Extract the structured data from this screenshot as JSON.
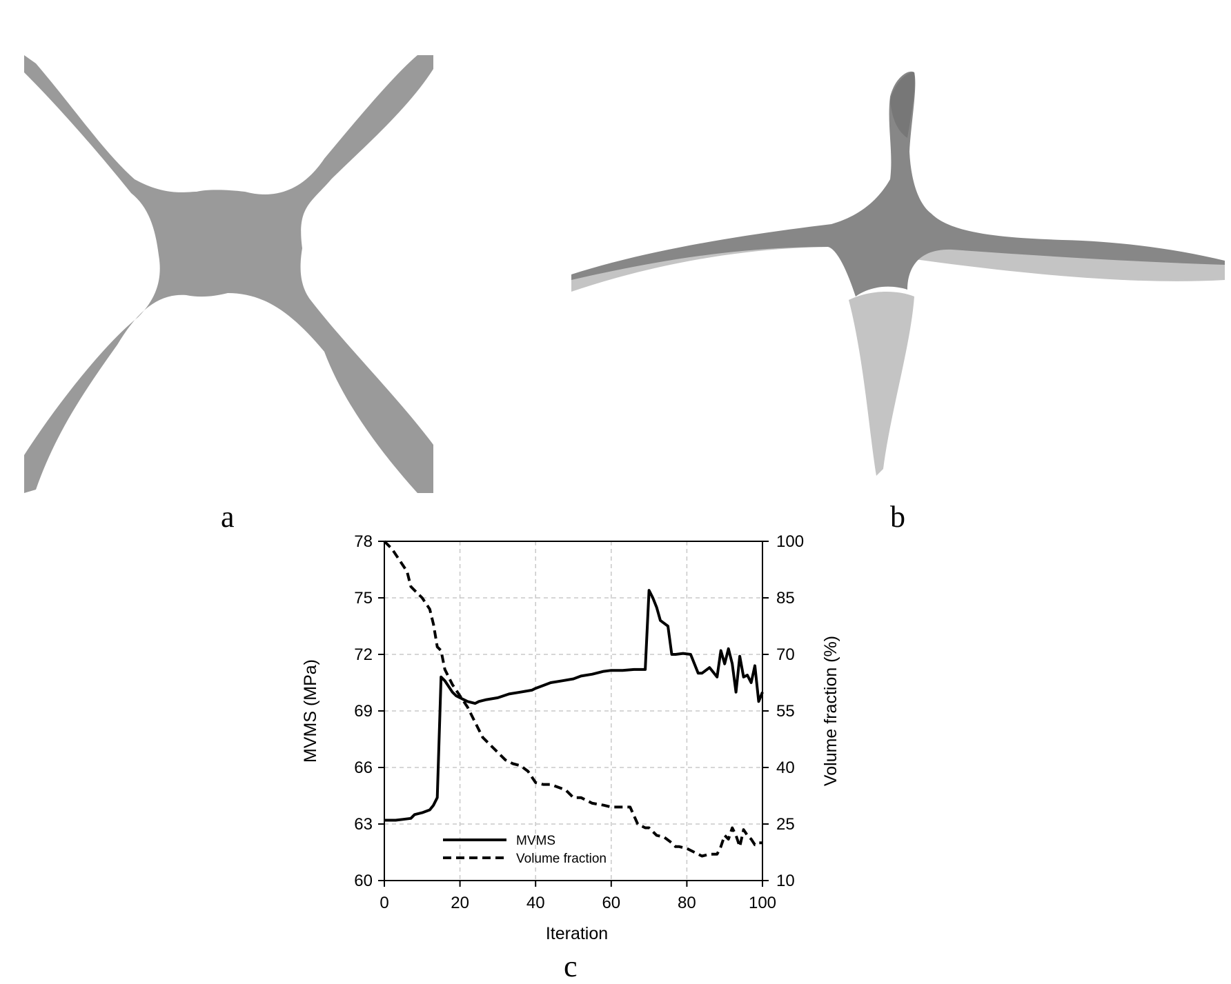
{
  "panels": {
    "a": "a",
    "b": "b",
    "c": "c"
  },
  "colors": {
    "shape": "#9a9a9a",
    "shape_dark": "#878787",
    "shape_light": "#c4c4c4",
    "line": "#000000",
    "grid": "#c8c8c8"
  },
  "chart_data": {
    "type": "line",
    "xlabel": "Iteration",
    "ylabel": "MVMS (MPa)",
    "y2label": "Volume fraction (%)",
    "xlim": [
      0,
      100
    ],
    "ylim": [
      60,
      78
    ],
    "y2lim": [
      10,
      100
    ],
    "xticks": [
      0,
      20,
      40,
      60,
      80,
      100
    ],
    "yticks": [
      60,
      63,
      66,
      69,
      72,
      75,
      78
    ],
    "y2ticks": [
      10,
      25,
      40,
      55,
      70,
      85,
      100
    ],
    "grid": true,
    "legend_position": "bottom-left",
    "series": [
      {
        "name": "MVMS",
        "axis": "left",
        "style": "solid",
        "x": [
          0,
          3,
          5,
          7,
          8,
          10,
          12,
          13,
          14,
          15,
          16,
          17,
          18,
          19,
          20,
          22,
          24,
          25,
          27,
          30,
          33,
          36,
          39,
          40,
          42,
          44,
          47,
          50,
          52,
          55,
          58,
          60,
          63,
          66,
          69,
          70,
          71,
          72,
          73,
          75,
          76,
          77,
          79,
          81,
          83,
          84,
          86,
          88,
          89,
          90,
          91,
          92,
          93,
          94,
          95,
          96,
          97,
          98,
          99,
          100
        ],
        "values": [
          63.2,
          63.2,
          63.25,
          63.3,
          63.5,
          63.6,
          63.75,
          64.0,
          64.4,
          70.8,
          70.6,
          70.3,
          70.0,
          69.8,
          69.7,
          69.5,
          69.4,
          69.5,
          69.6,
          69.7,
          69.9,
          70.0,
          70.1,
          70.2,
          70.35,
          70.5,
          70.6,
          70.7,
          70.85,
          70.95,
          71.1,
          71.15,
          71.15,
          71.2,
          71.2,
          75.4,
          75.0,
          74.5,
          73.8,
          73.5,
          72.0,
          72.0,
          72.05,
          72.0,
          71.0,
          71.0,
          71.3,
          70.8,
          72.2,
          71.5,
          72.3,
          71.5,
          70.0,
          71.9,
          70.8,
          70.9,
          70.5,
          71.4,
          69.5,
          70.0
        ]
      },
      {
        "name": "Volume fraction",
        "axis": "right",
        "style": "dashed",
        "x": [
          0,
          2,
          4,
          6,
          7,
          8,
          10,
          12,
          13,
          14,
          15,
          16,
          18,
          20,
          22,
          24,
          26,
          28,
          30,
          32,
          34,
          36,
          38,
          40,
          42,
          44,
          48,
          50,
          52,
          55,
          58,
          60,
          63,
          65,
          67,
          69,
          70,
          72,
          74,
          76,
          77,
          78,
          80,
          82,
          84,
          86,
          88,
          89,
          90,
          91,
          92,
          93,
          94,
          95,
          96,
          97,
          98,
          99,
          100
        ],
        "values": [
          100,
          98,
          95,
          92,
          88,
          87,
          85,
          82,
          78,
          72,
          71,
          66,
          62,
          59,
          56,
          52,
          48,
          46,
          44,
          42,
          41,
          40.5,
          39,
          36,
          35.5,
          35.5,
          34,
          32,
          32,
          30.5,
          30,
          29.5,
          29.5,
          29.5,
          25,
          24,
          24,
          22,
          21.5,
          20,
          19,
          19,
          18.5,
          17.5,
          16.5,
          17,
          17,
          19,
          22,
          21,
          24,
          22,
          19,
          23.5,
          22,
          21,
          19.5,
          20,
          20
        ]
      }
    ]
  }
}
